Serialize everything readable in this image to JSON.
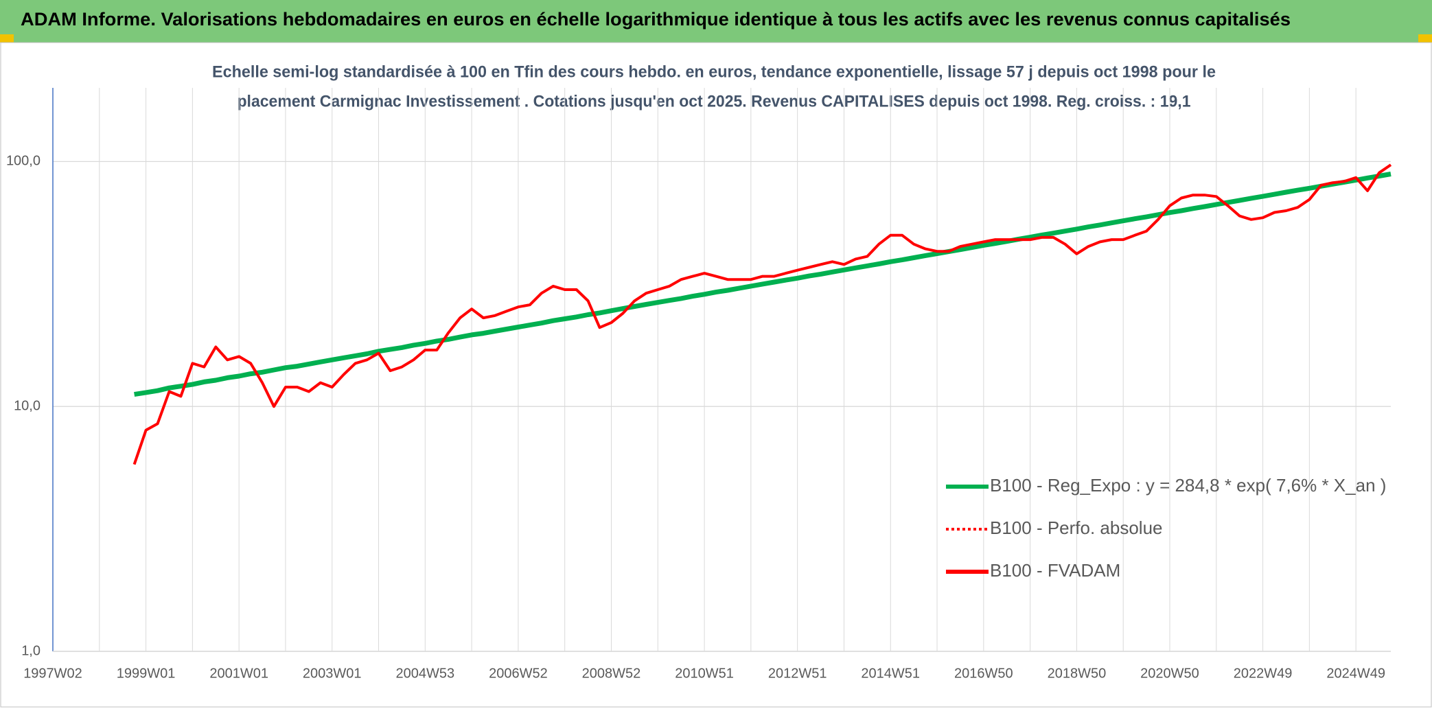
{
  "chart_data": {
    "type": "line",
    "title": "ADAM Informe. Valorisations hebdomadaires en euros en échelle logarithmique identique à tous les actifs avec les revenus connus capitalisés",
    "subtitle": [
      "Echelle semi-log standardisée à 100 en Tfin des cours hebdo. en euros, tendance exponentielle, lissage 57 j depuis oct 1998 pour le",
      "placement Carmignac Investissement . Cotations jusqu'en oct 2025. Revenus CAPITALISES depuis oct 1998. Reg. croiss. : 19,1"
    ],
    "log_scale": true,
    "grid": true,
    "legend": "right",
    "ylim": [
      1,
      200
    ],
    "yticks": [
      {
        "value": 1,
        "label": "1,0"
      },
      {
        "value": 10,
        "label": "10,0"
      },
      {
        "value": 100,
        "label": "100,0"
      }
    ],
    "categories": [
      "1997W02",
      null,
      null,
      null,
      null,
      null,
      null,
      null,
      "1999W01",
      null,
      null,
      null,
      null,
      null,
      null,
      null,
      "2001W01",
      null,
      null,
      null,
      null,
      null,
      null,
      null,
      "2003W01",
      null,
      null,
      null,
      null,
      null,
      null,
      null,
      "2004W53",
      null,
      null,
      null,
      null,
      null,
      null,
      null,
      "2006W52",
      null,
      null,
      null,
      null,
      null,
      null,
      null,
      "2008W52",
      null,
      null,
      null,
      null,
      null,
      null,
      null,
      "2010W51",
      null,
      null,
      null,
      null,
      null,
      null,
      null,
      "2012W51",
      null,
      null,
      null,
      null,
      null,
      null,
      null,
      "2014W51",
      null,
      null,
      null,
      null,
      null,
      null,
      null,
      "2016W50",
      null,
      null,
      null,
      null,
      null,
      null,
      null,
      "2018W50",
      null,
      null,
      null,
      null,
      null,
      null,
      null,
      "2020W50",
      null,
      null,
      null,
      null,
      null,
      null,
      null,
      "2022W49",
      null,
      null,
      null,
      null,
      null,
      null,
      null,
      "2024W49",
      null,
      null,
      null
    ],
    "series": [
      {
        "name": "B100 - Reg_Expo : y = 284,8 * exp( 7,6% *  X_an )",
        "color": "#00b050",
        "width": 7,
        "values": [
          null,
          null,
          null,
          null,
          null,
          null,
          null,
          11.2,
          11.4,
          11.6,
          11.9,
          12.1,
          12.3,
          12.6,
          12.8,
          13.1,
          13.3,
          13.6,
          13.8,
          14.1,
          14.4,
          14.6,
          14.9,
          15.2,
          15.5,
          15.8,
          16.1,
          16.4,
          16.8,
          17.1,
          17.4,
          17.8,
          18.1,
          18.5,
          18.8,
          19.2,
          19.6,
          19.9,
          20.3,
          20.7,
          21.1,
          21.5,
          21.9,
          22.4,
          22.8,
          23.2,
          23.7,
          24.1,
          24.6,
          25.1,
          25.6,
          26.1,
          26.6,
          27.1,
          27.6,
          28.2,
          28.7,
          29.3,
          29.8,
          30.4,
          31.0,
          31.6,
          32.2,
          32.8,
          33.4,
          34.1,
          34.7,
          35.4,
          36.1,
          36.8,
          37.5,
          38.2,
          39.0,
          39.7,
          40.5,
          41.3,
          42.1,
          42.9,
          43.7,
          44.6,
          45.5,
          46.3,
          47.2,
          48.2,
          49.1,
          50.1,
          51.0,
          52.0,
          53.0,
          54.1,
          55.1,
          56.2,
          57.3,
          58.4,
          59.5,
          60.7,
          61.9,
          63.0,
          64.3,
          65.5,
          66.8,
          68.1,
          69.4,
          70.8,
          72.1,
          73.5,
          75.0,
          76.4,
          77.8,
          79.3,
          80.9,
          82.4,
          84.0,
          85.7,
          87.3,
          89.0
        ]
      },
      {
        "name": "B100 - Perfo. absolue",
        "color": "#ff0000",
        "dash": true
      },
      {
        "name": "B100 - FVADAM",
        "color": "#ff0000",
        "width": 4,
        "values": [
          null,
          null,
          null,
          null,
          null,
          null,
          null,
          5.8,
          8.0,
          8.5,
          11.5,
          11,
          15,
          14.5,
          17.5,
          15.5,
          16,
          15,
          12.5,
          10,
          12,
          12,
          11.5,
          12.5,
          12,
          13.5,
          15,
          15.5,
          16.5,
          14,
          14.5,
          15.5,
          17,
          17,
          20,
          23,
          25,
          23,
          23.5,
          24.5,
          25.5,
          26,
          29,
          31,
          30,
          30,
          27,
          21,
          22,
          24,
          27,
          29,
          30,
          31,
          33,
          34,
          35,
          34,
          33,
          33,
          33,
          34,
          34,
          35,
          36,
          37,
          38,
          39,
          38,
          40,
          41,
          46,
          50,
          50,
          46,
          44,
          43,
          43,
          45,
          46,
          47,
          48,
          48,
          48,
          48,
          49,
          49,
          46,
          42,
          45,
          47,
          48,
          48,
          50,
          52,
          58,
          66,
          71,
          73,
          73,
          72,
          66,
          60,
          58,
          59,
          62,
          63,
          65,
          70,
          80,
          82,
          83,
          86,
          76,
          90,
          97
        ]
      }
    ]
  }
}
